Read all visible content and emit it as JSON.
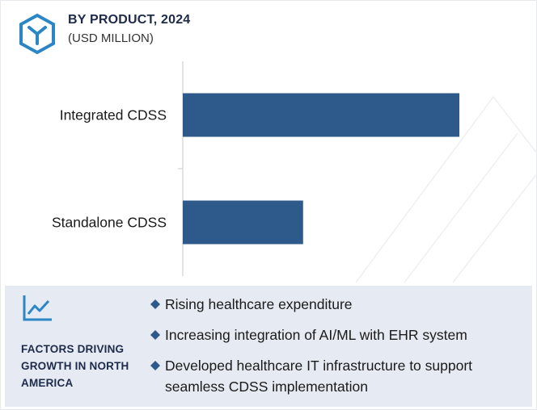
{
  "header": {
    "title": "BY PRODUCT, 2024",
    "subtitle": "(USD MILLION)",
    "logo_icon": "cube-y-logo-icon"
  },
  "colors": {
    "bar": "#2d5a8a",
    "brand": "#2b86c5",
    "panel": "#e6ebf3",
    "bullet": "#2d5a8a"
  },
  "chart_data": {
    "type": "bar",
    "orientation": "horizontal",
    "categories": [
      "Integrated CDSS",
      "Standalone CDSS"
    ],
    "values": [
      100,
      43.5
    ],
    "value_note": "relative bar lengths; no numeric axis printed",
    "xlim": [
      0,
      100
    ],
    "grid": false,
    "legend": "none"
  },
  "factors": {
    "icon": "line-chart-icon",
    "label": "FACTORS DRIVING GROWTH IN NORTH AMERICA",
    "items": [
      "Rising healthcare expenditure",
      "Increasing integration of AI/ML with EHR system",
      "Developed healthcare IT infrastructure to support seamless CDSS implementation"
    ]
  }
}
